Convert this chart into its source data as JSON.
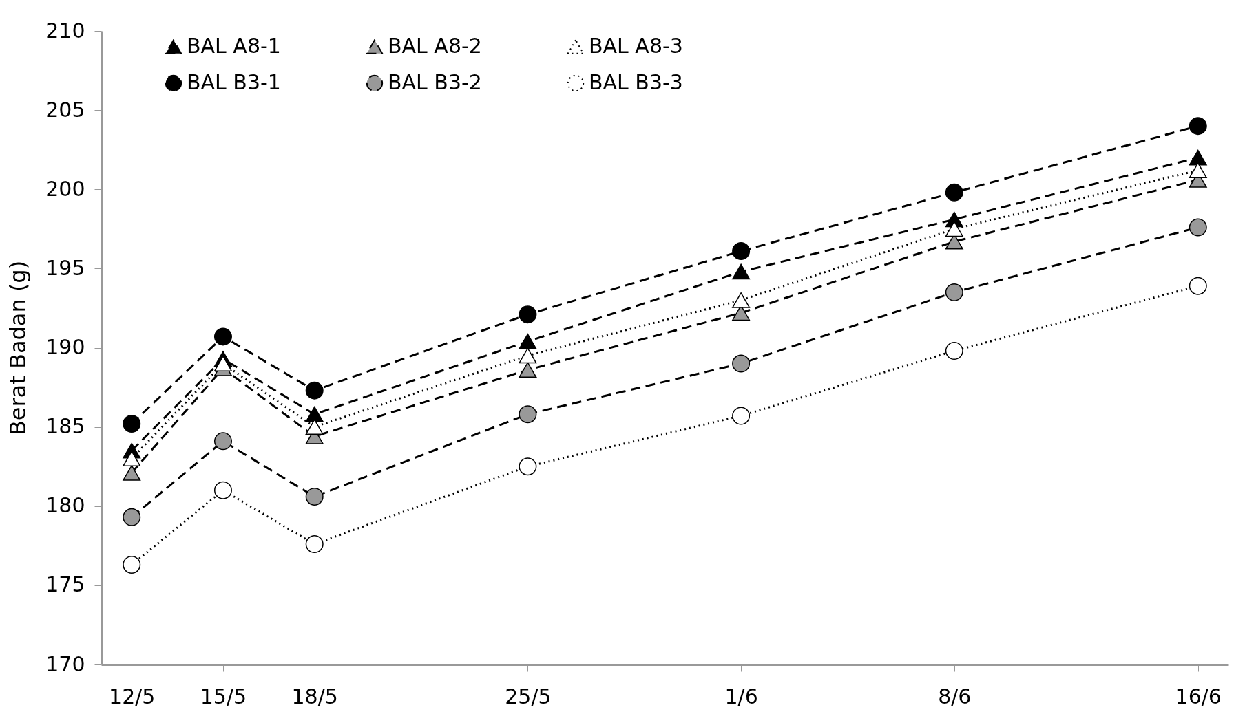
{
  "chart_data": {
    "type": "line",
    "ylabel": "Berat Badan (g)",
    "x": [
      "--05-12",
      "--05-15",
      "--05-18",
      "--05-25",
      "--06-01",
      "--06-08",
      "--06-16"
    ],
    "xlim": [
      "--05-11",
      "--06-17"
    ],
    "xticks": [
      {
        "value": "--05-12",
        "label": "12/5"
      },
      {
        "value": "--05-15",
        "label": "15/5"
      },
      {
        "value": "--05-18",
        "label": "18/5"
      },
      {
        "value": "--05-25",
        "label": "25/5"
      },
      {
        "value": "--06-01",
        "label": "1/6"
      },
      {
        "value": "--06-08",
        "label": "8/6"
      },
      {
        "value": "--06-16",
        "label": "16/6"
      }
    ],
    "ylim": [
      170,
      210
    ],
    "yticks": [
      170,
      175,
      180,
      185,
      190,
      195,
      200,
      205,
      210
    ],
    "grid": false,
    "legend": "top",
    "series": [
      {
        "name": "BAL A8-1",
        "color": "#000000",
        "marker": "triangle",
        "line_style": "dashed",
        "values": [
          183.5,
          189.3,
          185.8,
          190.4,
          194.8,
          198.1,
          202
        ]
      },
      {
        "name": "BAL A8-2",
        "color": "#999999",
        "marker": "triangle",
        "line_style": "dashed",
        "values": [
          182.1,
          188.7,
          184.4,
          188.6,
          192.2,
          196.7,
          200.6
        ]
      },
      {
        "name": "BAL A8-3",
        "color": "#ffffff",
        "marker": "triangle",
        "line_style": "dotted",
        "values": [
          183,
          189,
          185,
          189.5,
          193,
          197.5,
          201.2
        ]
      },
      {
        "name": "BAL B3-1",
        "color": "#000000",
        "marker": "circle",
        "line_style": "dashed",
        "values": [
          185.2,
          190.7,
          187.3,
          192.1,
          196.1,
          199.8,
          204
        ]
      },
      {
        "name": "BAL B3-2",
        "color": "#999999",
        "marker": "circle",
        "line_style": "dashed",
        "values": [
          179.3,
          184.1,
          180.6,
          185.8,
          189,
          193.5,
          197.6
        ]
      },
      {
        "name": "BAL B3-3",
        "color": "#ffffff",
        "marker": "circle",
        "line_style": "dotted",
        "values": [
          176.3,
          181,
          177.6,
          182.5,
          185.7,
          189.8,
          193.9
        ]
      }
    ]
  }
}
